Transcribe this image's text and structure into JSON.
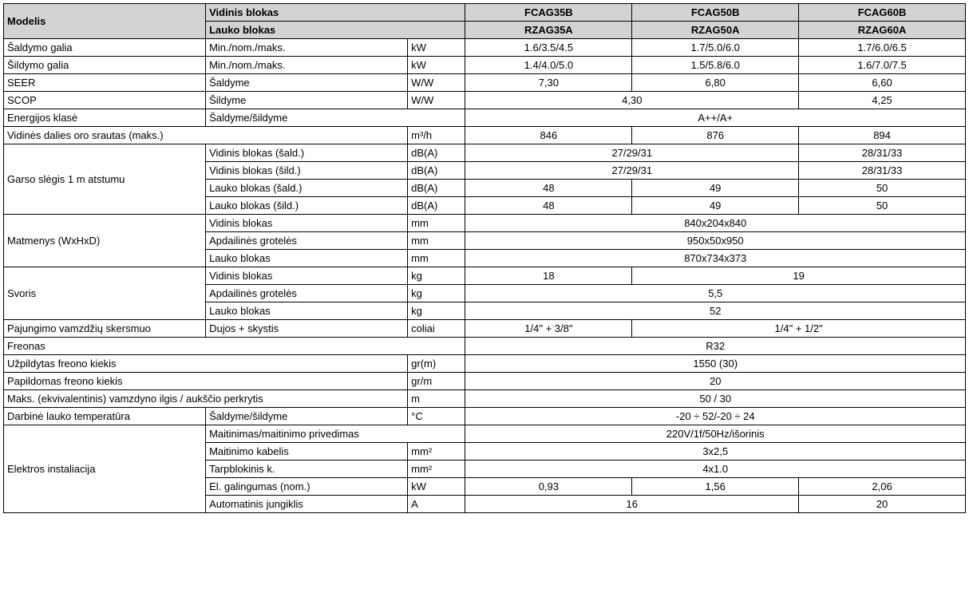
{
  "header": {
    "modelis": "Modelis",
    "vidinis": "Vidinis blokas",
    "lauko": "Lauko blokas",
    "m1_indoor": "FCAG35B",
    "m2_indoor": "FCAG50B",
    "m3_indoor": "FCAG60B",
    "m1_outdoor": "RZAG35A",
    "m2_outdoor": "RZAG50A",
    "m3_outdoor": "RZAG60A"
  },
  "rows": {
    "cooling": {
      "label": "Šaldymo galia",
      "sub": "Min./nom./maks.",
      "unit": "kW",
      "v1": "1.6/3.5/4.5",
      "v2": "1.7/5.0/6.0",
      "v3": "1.7/6.0/6.5"
    },
    "heating": {
      "label": "Šildymo galia",
      "sub": "Min./nom./maks.",
      "unit": "kW",
      "v1": "1.4/4.0/5.0",
      "v2": "1.5/5.8/6.0",
      "v3": "1.6/7.0/7.5"
    },
    "seer": {
      "label": "SEER",
      "sub": "Šaldyme",
      "unit": "W/W",
      "v1": "7,30",
      "v2": "6,80",
      "v3": "6,60"
    },
    "scop": {
      "label": "SCOP",
      "sub": "Šildyme",
      "unit": "W/W",
      "v12": "4,30",
      "v3": "4,25"
    },
    "energy": {
      "label": "Energijos klasė",
      "sub": "Šaldyme/šildyme",
      "v": "A++/A+"
    },
    "airflow": {
      "label": "Vidinės dalies oro srautas (maks.)",
      "unit": "m³/h",
      "v1": "846",
      "v2": "876",
      "v3": "894"
    },
    "sound": {
      "label": "Garso slėgis 1 m atstumu",
      "r1": {
        "sub": "Vidinis blokas (šald.)",
        "unit": "dB(A)",
        "v12": "27/29/31",
        "v3": "28/31/33"
      },
      "r2": {
        "sub": "Vidinis blokas (šild.)",
        "unit": "dB(A)",
        "v12": "27/29/31",
        "v3": "28/31/33"
      },
      "r3": {
        "sub": "Lauko blokas (šald.)",
        "unit": "dB(A)",
        "v1": "48",
        "v2": "49",
        "v3": "50"
      },
      "r4": {
        "sub": "Lauko blokas (šild.)",
        "unit": "dB(A)",
        "v1": "48",
        "v2": "49",
        "v3": "50"
      }
    },
    "dims": {
      "label": "Matmenys (WxHxD)",
      "r1": {
        "sub": "Vidinis blokas",
        "unit": "mm",
        "v": "840x204x840"
      },
      "r2": {
        "sub": "Apdailinės grotelės",
        "unit": "mm",
        "v": "950x50x950"
      },
      "r3": {
        "sub": "Lauko blokas",
        "unit": "mm",
        "v": "870x734x373"
      }
    },
    "weight": {
      "label": "Svoris",
      "r1": {
        "sub": "Vidinis blokas",
        "unit": "kg",
        "v1": "18",
        "v23": "19"
      },
      "r2": {
        "sub": "Apdailinės grotelės",
        "unit": "kg",
        "v": "5,5"
      },
      "r3": {
        "sub": "Lauko blokas",
        "unit": "kg",
        "v": "52"
      }
    },
    "pipe": {
      "label": "Pajungimo vamzdžių skersmuo",
      "sub": "Dujos + skystis",
      "unit": "coliai",
      "v1": "1/4\" + 3/8\"",
      "v23": "1/4\" + 1/2\""
    },
    "freon": {
      "label": "Freonas",
      "v": "R32"
    },
    "freon_qty": {
      "label": "Užpildytas freono kiekis",
      "unit": "gr(m)",
      "v": "1550 (30)"
    },
    "freon_add": {
      "label": "Papildomas freono kiekis",
      "unit": "gr/m",
      "v": "20"
    },
    "pipe_len": {
      "label": "Maks. (ekvivalentinis) vamzdyno ilgis / aukščio perkrytis",
      "unit": "m",
      "v": "50 / 30"
    },
    "temp": {
      "label": "Darbinė lauko temperatūra",
      "sub": "Šaldyme/šildyme",
      "unit": "°C",
      "v": "-20 ÷ 52/-20 ÷ 24"
    },
    "elec": {
      "label": "Elektros instaliacija",
      "r1": {
        "sub": "Maitinimas/maitinimo privedimas",
        "v": "220V/1f/50Hz/išorinis"
      },
      "r2": {
        "sub": "Maitinimo kabelis",
        "unit": "mm²",
        "v": "3x2,5"
      },
      "r3": {
        "sub": "Tarpblokinis k.",
        "unit": "mm²",
        "v": "4x1.0"
      },
      "r4": {
        "sub": "El. galingumas (nom.)",
        "unit": "kW",
        "v1": "0,93",
        "v2": "1,56",
        "v3": "2,06"
      },
      "r5": {
        "sub": "Automatinis jungiklis",
        "unit": "A",
        "v12": "16",
        "v3": "20"
      }
    }
  }
}
